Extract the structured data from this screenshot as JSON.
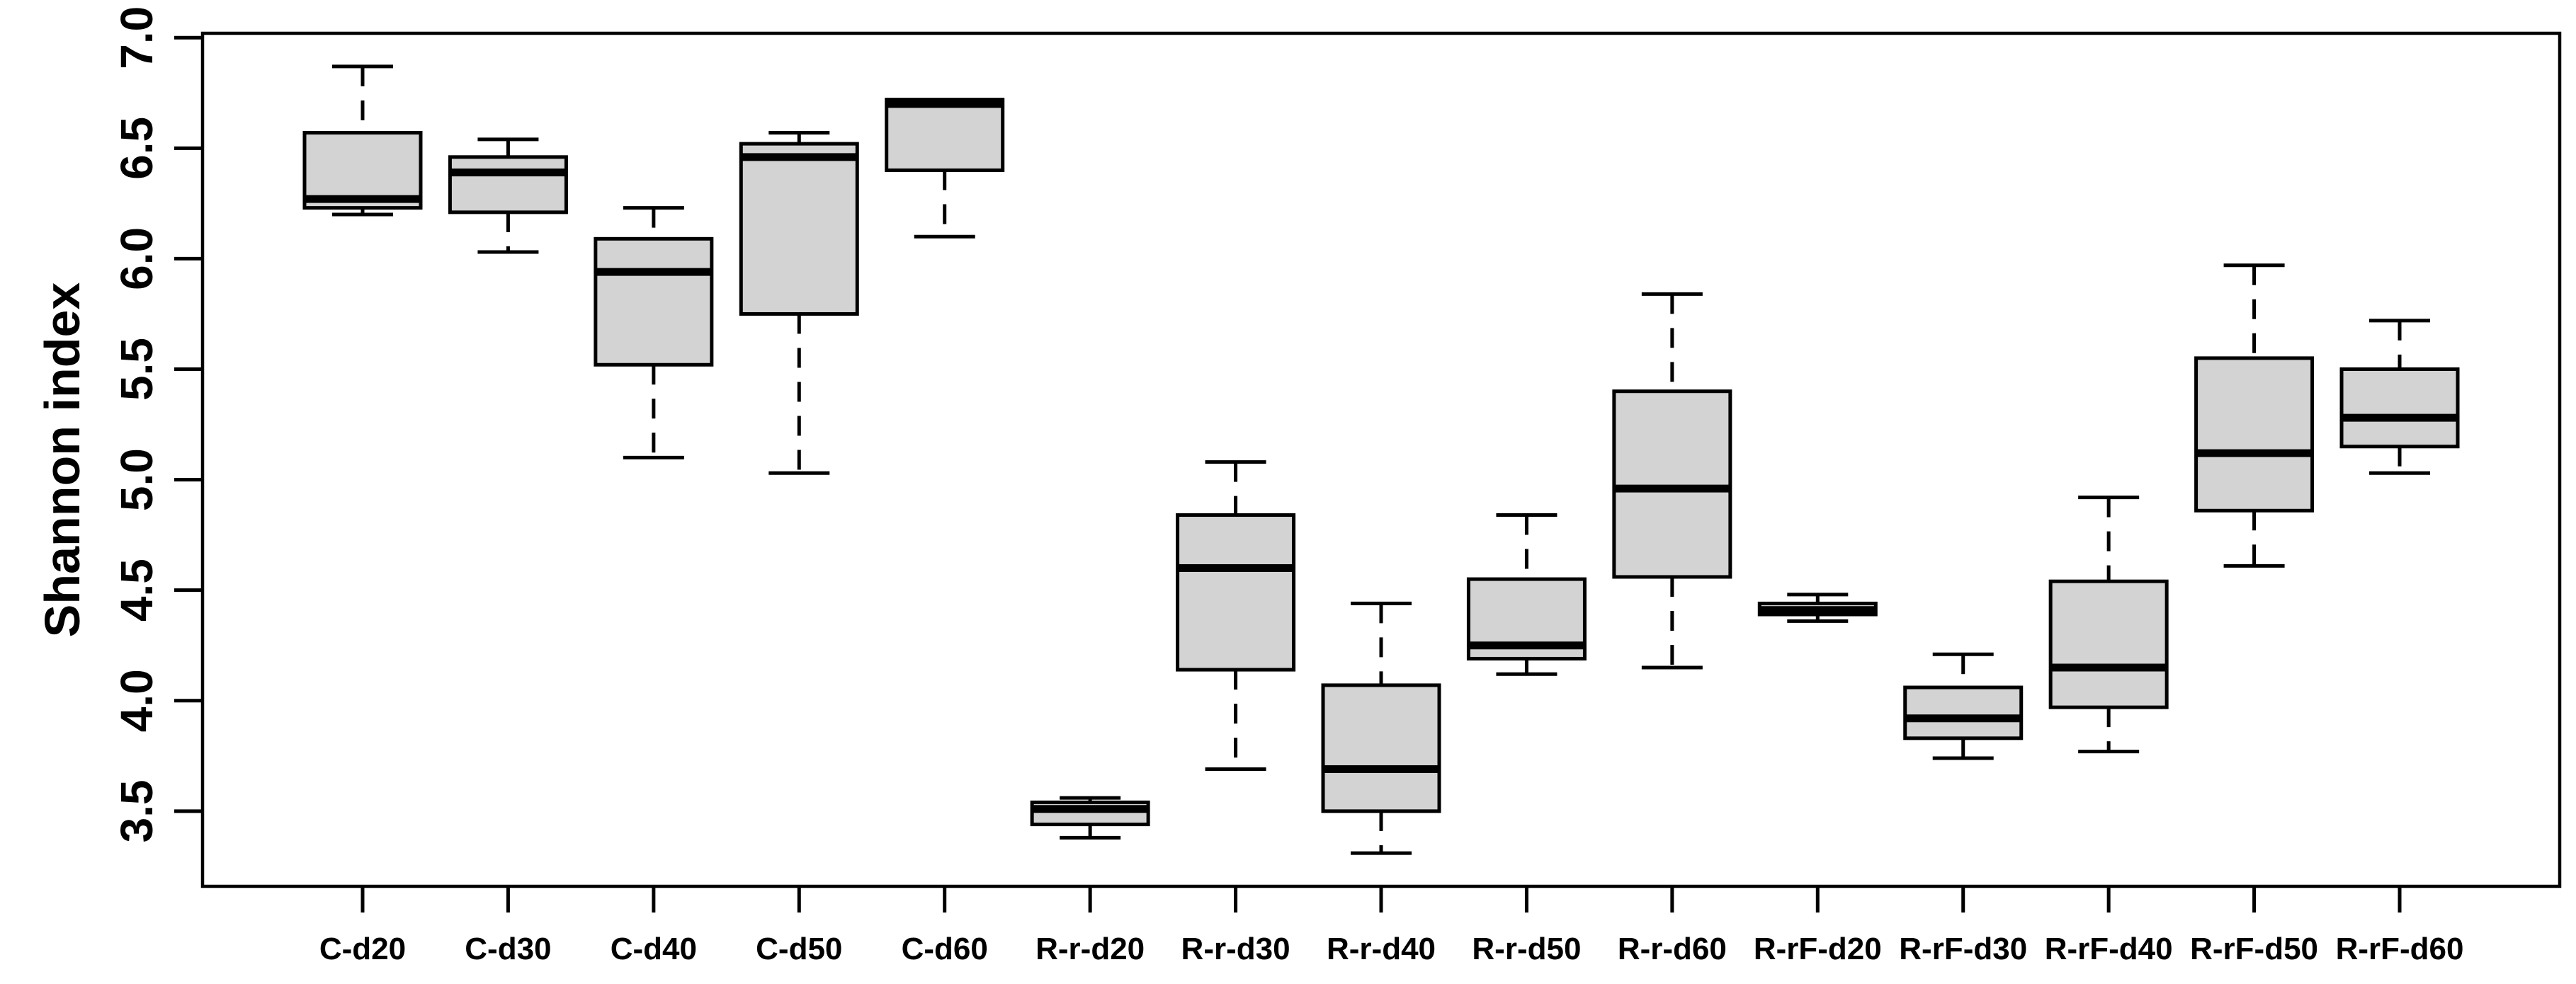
{
  "figure": {
    "background": "#ffffff",
    "border_color": "#000000"
  },
  "chart_data": {
    "type": "boxplot",
    "title": "",
    "xlabel": "",
    "ylabel": "Shannon index",
    "ylim": [
      3.16,
      7.02
    ],
    "yticks": [
      3.5,
      4.0,
      4.5,
      5.0,
      5.5,
      6.0,
      6.5,
      7.0
    ],
    "ytick_labels": [
      "3.5",
      "4.0",
      "4.5",
      "5.0",
      "5.5",
      "6.0",
      "6.5",
      "7.0"
    ],
    "grid": false,
    "legend": "none",
    "box_fill": "#d3d3d3",
    "stroke": "#000000",
    "whisker_style": "dashed",
    "categories": [
      "C-d20",
      "C-d30",
      "C-d40",
      "C-d50",
      "C-d60",
      "R-r-d20",
      "R-r-d30",
      "R-r-d40",
      "R-r-d50",
      "R-r-d60",
      "R-rF-d20",
      "R-rF-d30",
      "R-rF-d40",
      "R-rF-d50",
      "R-rF-d60"
    ],
    "boxes": [
      {
        "name": "C-d20",
        "whisker_low": 6.2,
        "q1": 6.23,
        "median": 6.27,
        "q3": 6.57,
        "whisker_high": 6.87
      },
      {
        "name": "C-d30",
        "whisker_low": 6.03,
        "q1": 6.21,
        "median": 6.39,
        "q3": 6.46,
        "whisker_high": 6.54
      },
      {
        "name": "C-d40",
        "whisker_low": 5.1,
        "q1": 5.52,
        "median": 5.94,
        "q3": 6.09,
        "whisker_high": 6.23
      },
      {
        "name": "C-d50",
        "whisker_low": 5.03,
        "q1": 5.75,
        "median": 6.46,
        "q3": 6.52,
        "whisker_high": 6.57
      },
      {
        "name": "C-d60",
        "whisker_low": 6.1,
        "q1": 6.4,
        "median": 6.7,
        "q3": 6.72,
        "whisker_high": 6.72
      },
      {
        "name": "R-r-d20",
        "whisker_low": 3.38,
        "q1": 3.44,
        "median": 3.51,
        "q3": 3.54,
        "whisker_high": 3.56
      },
      {
        "name": "R-r-d30",
        "whisker_low": 3.69,
        "q1": 4.14,
        "median": 4.6,
        "q3": 4.84,
        "whisker_high": 5.08
      },
      {
        "name": "R-r-d40",
        "whisker_low": 3.31,
        "q1": 3.5,
        "median": 3.69,
        "q3": 4.07,
        "whisker_high": 4.44
      },
      {
        "name": "R-r-d50",
        "whisker_low": 4.12,
        "q1": 4.19,
        "median": 4.25,
        "q3": 4.55,
        "whisker_high": 4.84
      },
      {
        "name": "R-r-d60",
        "whisker_low": 4.15,
        "q1": 4.56,
        "median": 4.96,
        "q3": 5.4,
        "whisker_high": 5.84
      },
      {
        "name": "R-rF-d20",
        "whisker_low": 4.36,
        "q1": 4.39,
        "median": 4.41,
        "q3": 4.44,
        "whisker_high": 4.48
      },
      {
        "name": "R-rF-d30",
        "whisker_low": 3.74,
        "q1": 3.83,
        "median": 3.92,
        "q3": 4.06,
        "whisker_high": 4.21
      },
      {
        "name": "R-rF-d40",
        "whisker_low": 3.77,
        "q1": 3.97,
        "median": 4.15,
        "q3": 4.54,
        "whisker_high": 4.92
      },
      {
        "name": "R-rF-d50",
        "whisker_low": 4.61,
        "q1": 4.86,
        "median": 5.12,
        "q3": 5.55,
        "whisker_high": 5.97
      },
      {
        "name": "R-rF-d60",
        "whisker_low": 5.03,
        "q1": 5.15,
        "median": 5.28,
        "q3": 5.5,
        "whisker_high": 5.72
      }
    ]
  }
}
